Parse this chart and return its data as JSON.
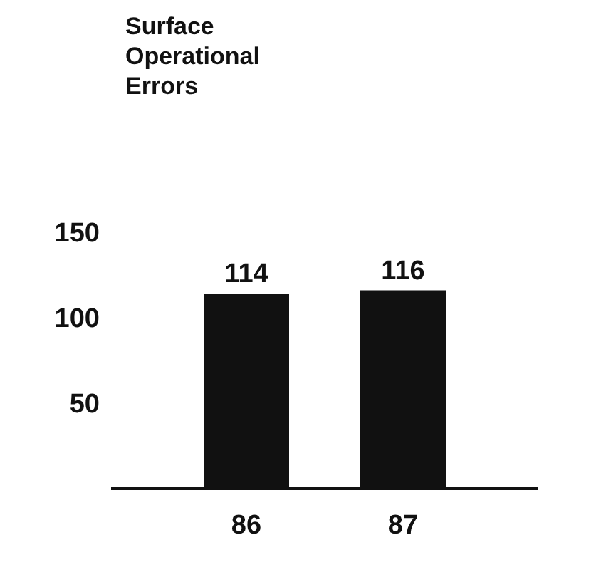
{
  "chart_data": {
    "type": "bar",
    "title": "Surface Operational Errors",
    "categories": [
      "86",
      "87"
    ],
    "values": [
      114,
      116
    ],
    "color": "#111111",
    "ylim": [
      0,
      150
    ],
    "yticks": [
      50,
      100,
      150
    ],
    "data_labels": true
  }
}
